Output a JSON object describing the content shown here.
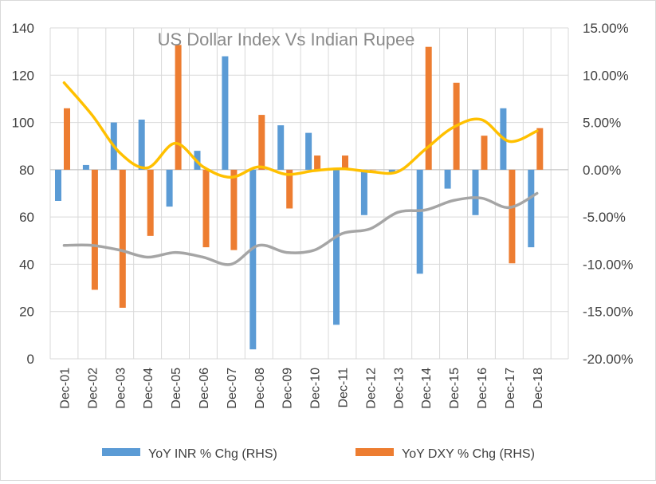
{
  "chart_data": {
    "type": "bar+line",
    "title": "US Dollar Index Vs Indian Rupee",
    "categories": [
      "Dec-01",
      "Dec-02",
      "Dec-03",
      "Dec-04",
      "Dec-05",
      "Dec-06",
      "Dec-07",
      "Dec-08",
      "Dec-09",
      "Dec-10",
      "Dec-11",
      "Dec-12",
      "Dec-13",
      "Dec-14",
      "Dec-15",
      "Dec-16",
      "Dec-17",
      "Dec-18"
    ],
    "left_axis": {
      "min": 0,
      "max": 140,
      "ticks": [
        "0",
        "20",
        "40",
        "60",
        "80",
        "100",
        "120",
        "140"
      ]
    },
    "right_axis": {
      "min": -20,
      "max": 15,
      "ticks": [
        "-20.00%",
        "-15.00%",
        "-10.00%",
        "-5.00%",
        "0.00%",
        "5.00%",
        "10.00%",
        "15.00%"
      ]
    },
    "grid": true,
    "legend_position": "bottom",
    "series": [
      {
        "name": "YoY INR % Chg (RHS)",
        "type": "bar",
        "axis": "right",
        "color": "#5b9bd5",
        "values": [
          -3.3,
          0.5,
          5.0,
          5.3,
          -3.9,
          2.0,
          12.0,
          -19.0,
          4.7,
          3.9,
          -16.4,
          -4.8,
          -0.4,
          -11.0,
          -2.0,
          -4.8,
          6.5,
          -8.2
        ]
      },
      {
        "name": "YoY DXY % Chg (RHS)",
        "type": "bar",
        "axis": "right",
        "color": "#ed7d31",
        "values": [
          6.5,
          -12.7,
          -14.6,
          -7.0,
          13.2,
          -8.2,
          -8.5,
          5.8,
          -4.1,
          1.5,
          1.5,
          0.0,
          0.0,
          13.0,
          9.2,
          3.6,
          -9.9,
          4.4
        ]
      },
      {
        "name": "",
        "type": "line",
        "axis": "right",
        "color": "#ffc000",
        "values": [
          9.2,
          5.8,
          1.8,
          0.2,
          2.8,
          0.3,
          -0.8,
          0.3,
          -0.5,
          -0.1,
          0.1,
          -0.2,
          -0.2,
          2.2,
          4.5,
          5.3,
          3.0,
          4.1
        ]
      },
      {
        "name": "",
        "type": "line",
        "axis": "left",
        "color": "#a5a5a5",
        "values": [
          48,
          48,
          46,
          43,
          45,
          43,
          40,
          48,
          45,
          46,
          53,
          55,
          62,
          63,
          67,
          68,
          64,
          70
        ]
      }
    ]
  }
}
